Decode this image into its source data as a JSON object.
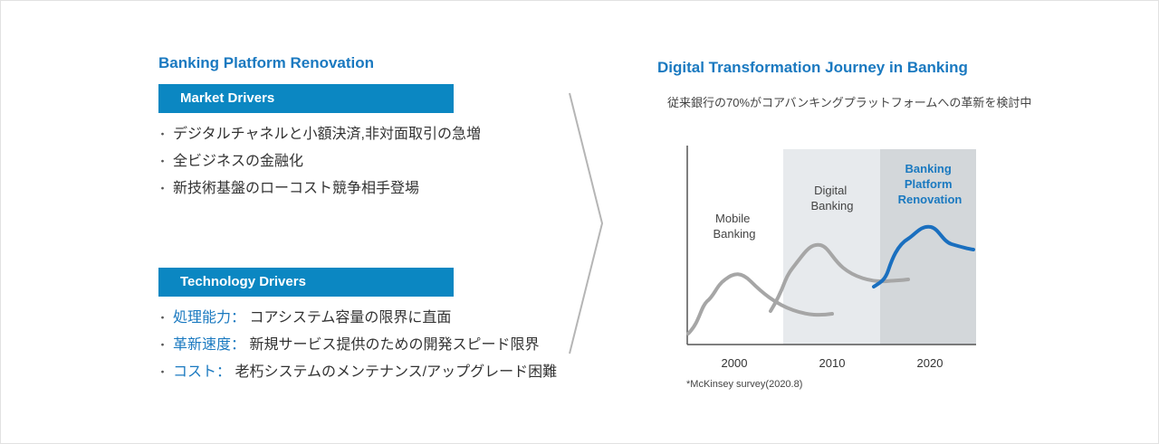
{
  "left": {
    "title": "Banking Platform Renovation",
    "market": {
      "header": "Market Drivers",
      "items": [
        "デジタルチャネルと小額決済,非対面取引の急増",
        "全ビジネスの金融化",
        "新技術基盤のローコスト競争相手登場"
      ]
    },
    "technology": {
      "header": "Technology Drivers",
      "items": [
        {
          "label": "処理能力：",
          "text": "コアシステム容量の限界に直面"
        },
        {
          "label": "革新速度：",
          "text": "新規サービス提供のための開発スピード限界"
        },
        {
          "label": "コスト：",
          "text": "老朽システムのメンテナンス/アップグレード困難"
        }
      ]
    }
  },
  "right": {
    "title": "Digital Transformation Journey in Banking",
    "subtitle": "従来銀行の70%がコアバンキングプラットフォームへの革新を検討中",
    "source": "*McKinsey survey(2020.8)"
  },
  "chart_data": {
    "type": "line",
    "x_ticks": [
      "2000",
      "2010",
      "2020"
    ],
    "phases": [
      {
        "name": [
          "Mobile",
          "Banking"
        ],
        "highlight": "none"
      },
      {
        "name": [
          "Digital",
          "Banking"
        ],
        "highlight": "light"
      },
      {
        "name": [
          "Banking",
          "Platform",
          "Renovation"
        ],
        "highlight": "dark"
      }
    ],
    "colors": {
      "accent": "#1a79c0",
      "curve_gray": "#a6a6a6",
      "phase_light": "#e7eaed",
      "phase_dark": "#d3d7da",
      "bar": "#0b87c2"
    }
  }
}
